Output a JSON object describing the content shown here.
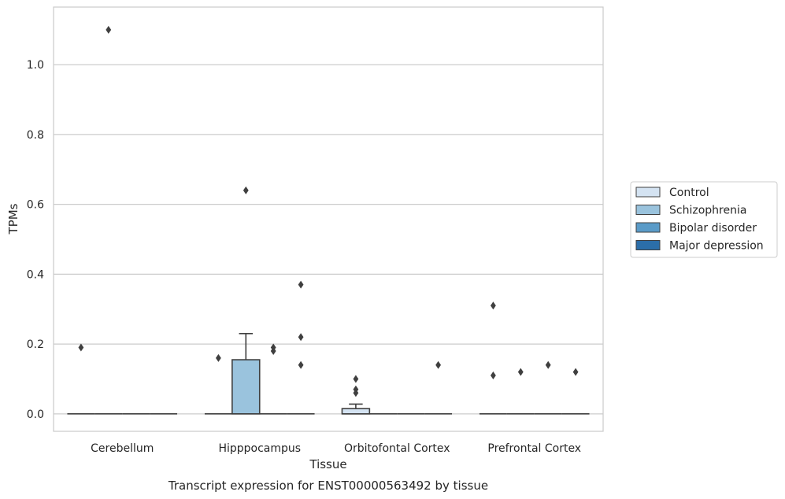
{
  "chart_data": {
    "type": "box",
    "title": "Transcript expression for ENST00000563492 by tissue",
    "xlabel": "Tissue",
    "ylabel": "TPMs",
    "ylim": [
      -0.05,
      1.165
    ],
    "yticks": [
      "0.0",
      "0.2",
      "0.4",
      "0.6",
      "0.8",
      "1.0"
    ],
    "grid": "horizontal",
    "legend_position": "right",
    "categories": [
      "Cerebellum",
      "Hipppocampus",
      "Orbitofontal Cortex",
      "Prefrontal Cortex"
    ],
    "series": [
      {
        "name": "Control",
        "color": "#d4e3f2"
      },
      {
        "name": "Schizophrenia",
        "color": "#9ac3dd"
      },
      {
        "name": "Bipolar disorder",
        "color": "#5a9bc8"
      },
      {
        "name": "Major depression",
        "color": "#2b6ea9"
      }
    ],
    "boxes": [
      {
        "category": 0,
        "series": 0,
        "q1": 0,
        "median": 0,
        "q3": 0,
        "whisker_low": 0,
        "whisker_high": 0,
        "outliers": [
          0.19
        ]
      },
      {
        "category": 0,
        "series": 1,
        "q1": 0,
        "median": 0,
        "q3": 0,
        "whisker_low": 0,
        "whisker_high": 0,
        "outliers": [
          1.1
        ]
      },
      {
        "category": 0,
        "series": 2,
        "q1": 0,
        "median": 0,
        "q3": 0,
        "whisker_low": 0,
        "whisker_high": 0,
        "outliers": []
      },
      {
        "category": 0,
        "series": 3,
        "q1": 0,
        "median": 0,
        "q3": 0,
        "whisker_low": 0,
        "whisker_high": 0,
        "outliers": []
      },
      {
        "category": 1,
        "series": 0,
        "q1": 0,
        "median": 0,
        "q3": 0,
        "whisker_low": 0,
        "whisker_high": 0,
        "outliers": [
          0.16
        ]
      },
      {
        "category": 1,
        "series": 1,
        "q1": 0,
        "median": 0,
        "q3": 0.155,
        "whisker_low": 0,
        "whisker_high": 0.23,
        "outliers": [
          0.64
        ]
      },
      {
        "category": 1,
        "series": 2,
        "q1": 0,
        "median": 0,
        "q3": 0,
        "whisker_low": 0,
        "whisker_high": 0,
        "outliers": [
          0.19,
          0.18
        ]
      },
      {
        "category": 1,
        "series": 3,
        "q1": 0,
        "median": 0,
        "q3": 0,
        "whisker_low": 0,
        "whisker_high": 0,
        "outliers": [
          0.37,
          0.22,
          0.14
        ]
      },
      {
        "category": 2,
        "series": 0,
        "q1": 0,
        "median": 0,
        "q3": 0.015,
        "whisker_low": 0,
        "whisker_high": 0.028,
        "outliers": [
          0.1,
          0.07,
          0.06
        ]
      },
      {
        "category": 2,
        "series": 1,
        "q1": 0,
        "median": 0,
        "q3": 0,
        "whisker_low": 0,
        "whisker_high": 0,
        "outliers": []
      },
      {
        "category": 2,
        "series": 2,
        "q1": 0,
        "median": 0,
        "q3": 0,
        "whisker_low": 0,
        "whisker_high": 0,
        "outliers": []
      },
      {
        "category": 2,
        "series": 3,
        "q1": 0,
        "median": 0,
        "q3": 0,
        "whisker_low": 0,
        "whisker_high": 0,
        "outliers": [
          0.14
        ]
      },
      {
        "category": 3,
        "series": 0,
        "q1": 0,
        "median": 0,
        "q3": 0,
        "whisker_low": 0,
        "whisker_high": 0,
        "outliers": [
          0.31,
          0.11
        ]
      },
      {
        "category": 3,
        "series": 1,
        "q1": 0,
        "median": 0,
        "q3": 0,
        "whisker_low": 0,
        "whisker_high": 0,
        "outliers": [
          0.12
        ]
      },
      {
        "category": 3,
        "series": 2,
        "q1": 0,
        "median": 0,
        "q3": 0,
        "whisker_low": 0,
        "whisker_high": 0,
        "outliers": [
          0.14
        ]
      },
      {
        "category": 3,
        "series": 3,
        "q1": 0,
        "median": 0,
        "q3": 0,
        "whisker_low": 0,
        "whisker_high": 0,
        "outliers": [
          0.12
        ]
      }
    ]
  }
}
